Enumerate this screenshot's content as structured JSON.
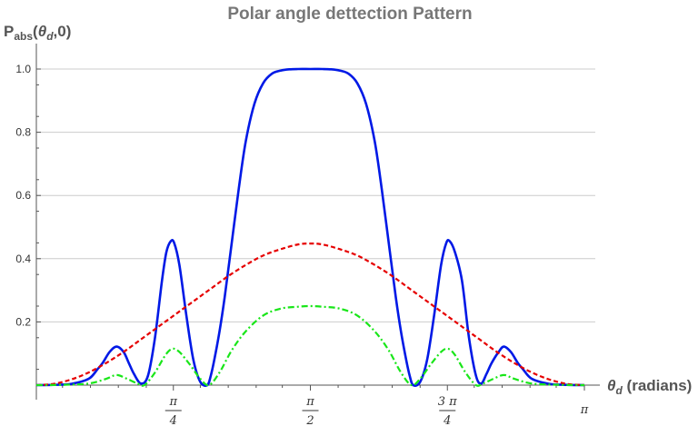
{
  "chart_data": {
    "type": "line",
    "title": "Polar angle dettection Pattern",
    "ylabel": {
      "main": "P",
      "sub": "abs",
      "args_open": "(",
      "theta": "θ",
      "theta_sub": "d",
      "args_close": ",0)"
    },
    "xlabel": {
      "theta": "θ",
      "theta_sub": "d",
      "units": " (radians)"
    },
    "xlim": [
      0,
      3.14159
    ],
    "ylim": [
      0,
      1.0
    ],
    "y_ticks": [
      {
        "value": 0.2,
        "label": "0.2"
      },
      {
        "value": 0.4,
        "label": "0.4"
      },
      {
        "value": 0.6,
        "label": "0.6"
      },
      {
        "value": 0.8,
        "label": "0.8"
      },
      {
        "value": 1.0,
        "label": "1.0"
      }
    ],
    "x_ticks": [
      {
        "value": 0.7854,
        "num": "π",
        "den": "4",
        "frac": true
      },
      {
        "value": 1.5708,
        "num": "π",
        "den": "2",
        "frac": true
      },
      {
        "value": 2.3562,
        "num": "3 π",
        "den": "4",
        "frac": true
      },
      {
        "value": 3.14159,
        "num": "π",
        "den": "",
        "frac": false
      }
    ],
    "grid": "horizontal",
    "legend": "none",
    "series": [
      {
        "style": "solid",
        "color": "#0019e6",
        "x": [
          0,
          0.1,
          0.2,
          0.3,
          0.35,
          0.38,
          0.42,
          0.46,
          0.5,
          0.53,
          0.56,
          0.6,
          0.64,
          0.68,
          0.72,
          0.745,
          0.77,
          0.79,
          0.82,
          0.86,
          0.9,
          0.94,
          0.98,
          1.0,
          1.02,
          1.05,
          1.08,
          1.12,
          1.16,
          1.2,
          1.25,
          1.3,
          1.35,
          1.4,
          1.45,
          1.5,
          1.5708,
          1.64,
          1.69,
          1.74,
          1.79,
          1.84,
          1.89,
          1.94,
          1.98,
          2.02,
          2.06,
          2.09,
          2.12,
          2.14,
          2.16,
          2.2,
          2.24,
          2.28,
          2.32,
          2.35,
          2.37,
          2.4,
          2.44,
          2.48,
          2.52,
          2.55,
          2.58,
          2.61,
          2.65,
          2.68,
          2.72,
          2.76,
          2.79,
          2.84,
          2.94,
          3.04,
          3.14159
        ],
        "y": [
          0,
          0.001,
          0.004,
          0.02,
          0.05,
          0.07,
          0.105,
          0.122,
          0.105,
          0.07,
          0.035,
          0.005,
          0.03,
          0.15,
          0.33,
          0.42,
          0.455,
          0.45,
          0.38,
          0.22,
          0.08,
          0.01,
          0.0,
          0.03,
          0.08,
          0.17,
          0.28,
          0.45,
          0.62,
          0.77,
          0.89,
          0.955,
          0.985,
          0.995,
          0.999,
          1.0,
          1.0,
          1.0,
          0.999,
          0.995,
          0.985,
          0.955,
          0.89,
          0.77,
          0.62,
          0.45,
          0.28,
          0.17,
          0.08,
          0.03,
          0.0,
          0.01,
          0.08,
          0.22,
          0.38,
          0.45,
          0.455,
          0.42,
          0.33,
          0.15,
          0.03,
          0.005,
          0.035,
          0.07,
          0.105,
          0.122,
          0.105,
          0.07,
          0.05,
          0.02,
          0.004,
          0.001,
          0
        ]
      },
      {
        "style": "dashed",
        "color": "#e60000",
        "x": [
          0,
          0.1,
          0.2,
          0.3,
          0.4,
          0.5,
          0.6,
          0.7,
          0.8,
          0.9,
          1.0,
          1.1,
          1.2,
          1.3,
          1.4,
          1.5,
          1.5708,
          1.64,
          1.74,
          1.84,
          1.94,
          2.04,
          2.14,
          2.24,
          2.34,
          2.44,
          2.54,
          2.64,
          2.74,
          2.84,
          2.94,
          3.04,
          3.14159
        ],
        "y": [
          0,
          0.004,
          0.018,
          0.04,
          0.07,
          0.105,
          0.145,
          0.185,
          0.225,
          0.265,
          0.305,
          0.345,
          0.38,
          0.41,
          0.43,
          0.445,
          0.448,
          0.445,
          0.43,
          0.41,
          0.38,
          0.345,
          0.305,
          0.265,
          0.225,
          0.185,
          0.145,
          0.105,
          0.07,
          0.04,
          0.018,
          0.004,
          0
        ]
      },
      {
        "style": "dashdot",
        "color": "#19e619",
        "x": [
          0,
          0.15,
          0.3,
          0.4,
          0.46,
          0.52,
          0.58,
          0.62,
          0.68,
          0.74,
          0.78,
          0.82,
          0.88,
          0.94,
          0.99,
          1.05,
          1.12,
          1.2,
          1.3,
          1.4,
          1.5,
          1.5708,
          1.64,
          1.74,
          1.84,
          1.94,
          2.02,
          2.09,
          2.15,
          2.2,
          2.26,
          2.32,
          2.36,
          2.4,
          2.46,
          2.52,
          2.56,
          2.62,
          2.68,
          2.74,
          2.84,
          2.99,
          3.14159
        ],
        "y": [
          0,
          0.001,
          0.005,
          0.02,
          0.032,
          0.02,
          0.005,
          0.0,
          0.04,
          0.095,
          0.115,
          0.105,
          0.065,
          0.02,
          0.0,
          0.04,
          0.11,
          0.17,
          0.22,
          0.242,
          0.248,
          0.25,
          0.248,
          0.242,
          0.22,
          0.17,
          0.11,
          0.04,
          0.0,
          0.02,
          0.065,
          0.105,
          0.115,
          0.095,
          0.04,
          0.0,
          0.005,
          0.02,
          0.032,
          0.02,
          0.005,
          0.001,
          0
        ]
      }
    ]
  }
}
